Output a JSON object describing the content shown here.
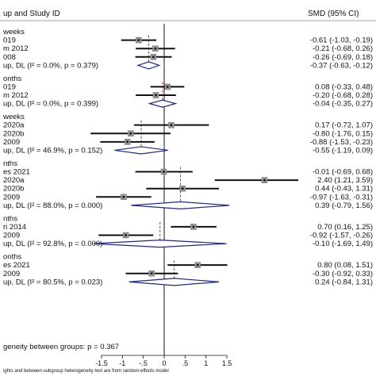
{
  "header": {
    "study_col": "up and Study ID",
    "smd_col": "SMD (95% CI)"
  },
  "footnote": "ights and between-subgroup heterogeneity test are from random-effects model",
  "overall_heterogeneity": "geneity between groups: p = 0.367",
  "chart_data": {
    "type": "forest",
    "xlim": [
      -1.5,
      1.5
    ],
    "xticks": [
      "-1.5",
      "-1",
      "-.5",
      "0",
      ".5",
      "1",
      "1.5"
    ],
    "null_line": 0,
    "colors": {
      "marker": "#111111",
      "box": "#9a9a9a",
      "diamond": "#1f2a78",
      "pooled_line": "#b03030"
    },
    "groups": [
      {
        "title": "weeks",
        "studies": [
          {
            "label": "019",
            "smd": -0.61,
            "lo": -1.03,
            "hi": -0.19,
            "ci": "-0.61 (-1.03, -0.19)"
          },
          {
            "label": "m 2012",
            "smd": -0.21,
            "lo": -0.68,
            "hi": 0.26,
            "ci": "-0.21 (-0.68, 0.26)"
          },
          {
            "label": "008",
            "smd": -0.26,
            "lo": -0.69,
            "hi": 0.18,
            "ci": "-0.26 (-0.69, 0.18)"
          }
        ],
        "summary": {
          "label": "up, DL (I² = 0.0%, p = 0.379)",
          "smd": -0.37,
          "lo": -0.63,
          "hi": -0.12,
          "ci": "-0.37 (-0.63, -0.12)"
        }
      },
      {
        "title": "onths",
        "studies": [
          {
            "label": "019",
            "smd": 0.08,
            "lo": -0.33,
            "hi": 0.48,
            "ci": "0.08 (-0.33, 0.48)"
          },
          {
            "label": "m 2012",
            "smd": -0.2,
            "lo": -0.68,
            "hi": 0.28,
            "ci": "-0.20 (-0.68, 0.28)"
          }
        ],
        "summary": {
          "label": "up, DL (I² = 0.0%, p = 0.399)",
          "smd": -0.04,
          "lo": -0.35,
          "hi": 0.27,
          "ci": "-0.04 (-0.35, 0.27)"
        }
      },
      {
        "title": "weeks",
        "studies": [
          {
            "label": "2020a",
            "smd": 0.17,
            "lo": -0.72,
            "hi": 1.07,
            "ci": "0.17 (-0.72, 1.07)"
          },
          {
            "label": "2020b",
            "smd": -0.8,
            "lo": -1.76,
            "hi": 0.15,
            "ci": "-0.80 (-1.76, 0.15)"
          },
          {
            "label": "2009",
            "smd": -0.88,
            "lo": -1.53,
            "hi": -0.23,
            "ci": "-0.88 (-1.53, -0.23)"
          }
        ],
        "summary": {
          "label": "up, DL (I² = 46.9%, p = 0.152)",
          "smd": -0.55,
          "lo": -1.19,
          "hi": 0.09,
          "ci": "-0.55 (-1.19, 0.09)"
        }
      },
      {
        "title": "nths",
        "studies": [
          {
            "label": "es 2021",
            "smd": -0.01,
            "lo": -0.69,
            "hi": 0.68,
            "ci": "-0.01 (-0.69, 0.68)"
          },
          {
            "label": "2020a",
            "smd": 2.4,
            "lo": 1.21,
            "hi": 3.59,
            "ci": "2.40 (1.21, 3.59)"
          },
          {
            "label": "2020b",
            "smd": 0.44,
            "lo": -0.43,
            "hi": 1.31,
            "ci": "0.44 (-0.43, 1.31)"
          },
          {
            "label": "2009",
            "smd": -0.97,
            "lo": -1.63,
            "hi": -0.31,
            "ci": "-0.97 (-1.63, -0.31)"
          }
        ],
        "summary": {
          "label": "up, DL (I² = 88.0%, p = 0.000)",
          "smd": 0.39,
          "lo": -0.79,
          "hi": 1.56,
          "ci": "0.39 (-0.79, 1.56)"
        }
      },
      {
        "title": "nths",
        "studies": [
          {
            "label": "ri 2014",
            "smd": 0.7,
            "lo": 0.16,
            "hi": 1.25,
            "ci": "0.70 (0.16, 1.25)"
          },
          {
            "label": "2009",
            "smd": -0.92,
            "lo": -1.57,
            "hi": -0.26,
            "ci": "-0.92 (-1.57, -0.26)"
          }
        ],
        "summary": {
          "label": "up, DL (I² = 92.8%, p = 0.000)",
          "smd": -0.1,
          "lo": -1.69,
          "hi": 1.49,
          "ci": "-0.10 (-1.69, 1.49)"
        }
      },
      {
        "title": "onths",
        "studies": [
          {
            "label": "es 2021",
            "smd": 0.8,
            "lo": 0.08,
            "hi": 1.51,
            "ci": "0.80 (0.08, 1.51)"
          },
          {
            "label": "2009",
            "smd": -0.3,
            "lo": -0.92,
            "hi": 0.33,
            "ci": "-0.30 (-0.92, 0.33)"
          }
        ],
        "summary": {
          "label": "up, DL (I² = 80.5%, p = 0.023)",
          "smd": 0.24,
          "lo": -0.84,
          "hi": 1.31,
          "ci": "0.24 (-0.84, 1.31)"
        }
      }
    ]
  }
}
